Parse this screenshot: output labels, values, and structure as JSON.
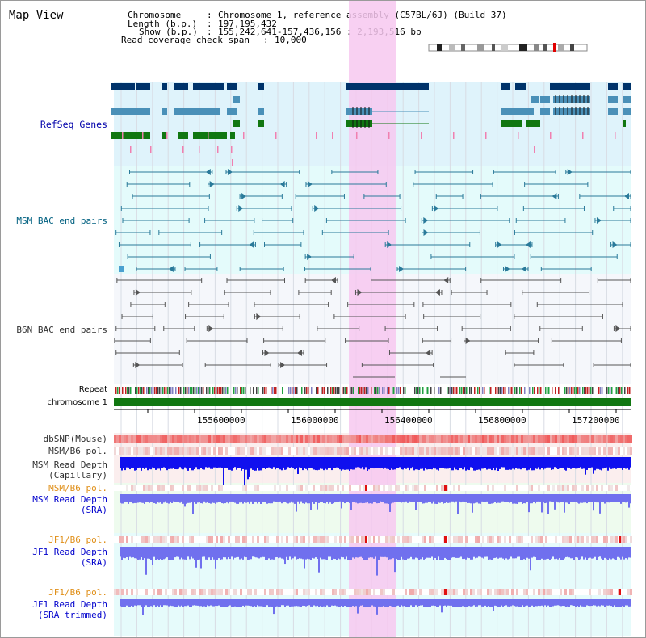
{
  "page": {
    "title": "Map View"
  },
  "header": {
    "chromosome_label": "Chromosome",
    "chromosome_value": "Chromosome 1, reference assembly (C57BL/6J) (Build 37)",
    "length_label": "Length (b.p.)",
    "length_value": "197,195,432",
    "show_label": "Show (b.p.)",
    "show_value": "155,242,641-157,436,156 : 2,193,516 bp",
    "coverage_label": "Read coverage check span",
    "coverage_value": "10,000"
  },
  "tracks": {
    "refseq": "RefSeq Genes",
    "msm_bac": "MSM BAC end pairs",
    "b6n_bac": "B6N BAC end pairs",
    "repeat": "Repeat",
    "chromosome": "chromosome 1",
    "dbsnp": "dbSNP(Mouse)",
    "msm_b6_pol_1": "MSM/B6 pol.",
    "msm_read_depth_cap_1": "MSM Read Depth",
    "msm_read_depth_cap_2": "(Capillary)",
    "msm_b6_pol_2": "MSM/B6 pol.",
    "msm_read_depth_sra_1": "MSM Read Depth",
    "msm_read_depth_sra_2": "(SRA)",
    "jf1_b6_pol_1": "JF1/B6 pol.",
    "jf1_read_depth_sra_1": "JF1 Read Depth",
    "jf1_read_depth_sra_2": "(SRA)",
    "jf1_b6_pol_2": "JF1/B6 pol.",
    "jf1_read_depth_trim_1": "JF1 Read Depth",
    "jf1_read_depth_trim_2": "(SRA trimmed)"
  },
  "axis": {
    "ticks": [
      "155600000",
      "156000000",
      "156400000",
      "156800000",
      "157200000"
    ]
  },
  "colors": {
    "highlight": "#f7c8f0",
    "refseq_bg": "#dff3fb",
    "msm_bg": "#e4fbfb",
    "b6n_bg": "#f5f7fb",
    "chromosome": "#117711",
    "gene_navy": "#00336a",
    "gene_teal": "#4a90b8",
    "gene_green": "#117711",
    "depth_cap": "#1010ee",
    "depth_sra": "#7070ee",
    "snp": "#f07070"
  }
}
